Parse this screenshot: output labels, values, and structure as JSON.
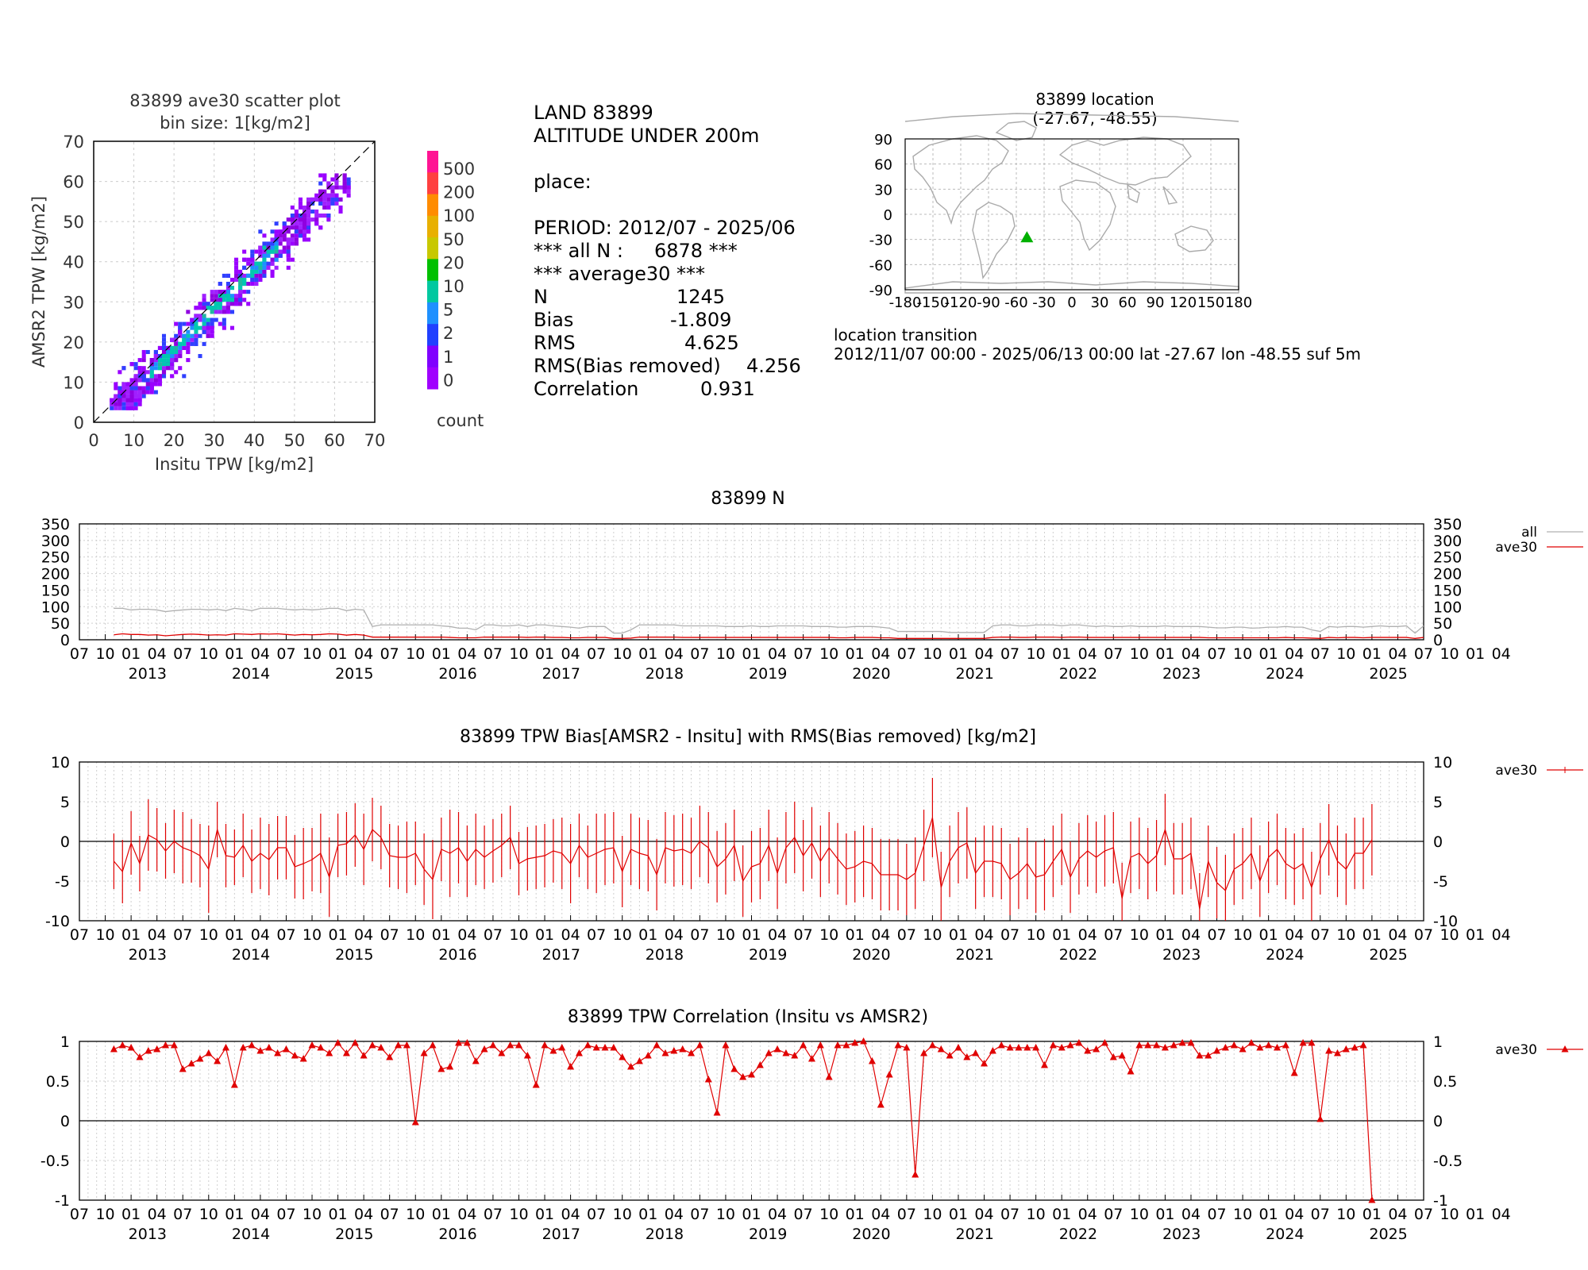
{
  "station": "83899",
  "scatter": {
    "title_line1": "83899 ave30 scatter plot",
    "title_line2": "bin size: 1[kg/m2]",
    "xlabel": "Insitu TPW [kg/m2]",
    "ylabel": "AMSR2 TPW [kg/m2]",
    "ticks": [
      "0",
      "10",
      "20",
      "30",
      "40",
      "50",
      "60",
      "70"
    ],
    "colorbar_labels": [
      "500",
      "200",
      "100",
      "50",
      "20",
      "10",
      "5",
      "2",
      "1",
      "0"
    ],
    "colorbar_colors": [
      "#ff1493",
      "#ff4040",
      "#ff8c00",
      "#e8b000",
      "#c8c800",
      "#00c000",
      "#00c8a0",
      "#1e90ff",
      "#2040ff",
      "#8000ff",
      "#a000ff"
    ],
    "colorbar_title": "count"
  },
  "stats": {
    "line1": "LAND 83899",
    "line2": "ALTITUDE UNDER 200m",
    "line3": "place:",
    "period": "PERIOD: 2012/07 - 2025/06",
    "all_n_label": "*** all N :",
    "all_n_value": "6878 ***",
    "avg_header": "*** average30 ***",
    "rows": [
      {
        "label": "N",
        "value": "1245"
      },
      {
        "label": "Bias",
        "value": "-1.809"
      },
      {
        "label": "RMS",
        "value": "4.625"
      },
      {
        "label": "RMS(Bias removed)",
        "value": "4.256"
      },
      {
        "label": "Correlation",
        "value": "0.931"
      }
    ]
  },
  "location": {
    "title_line1": "83899 location",
    "title_line2": "(-27.67, -48.55)",
    "lat": -27.67,
    "lon": -48.55,
    "yticks": [
      "90",
      "60",
      "30",
      "0",
      "-30",
      "-60",
      "-90"
    ],
    "xticks": [
      "-180",
      "-150",
      "-120",
      "-90",
      "-60",
      "-30",
      "0",
      "30",
      "60",
      "90",
      "120",
      "150",
      "180"
    ],
    "marker_color": "#00b000",
    "transition_title": "location transition",
    "transition_text": "2012/11/07 00:00 - 2025/06/13 00:00 lat -27.67 lon -48.55 suf 5m"
  },
  "time_axis": {
    "month_labels": [
      "07",
      "10",
      "01",
      "04",
      "07",
      "10",
      "01",
      "04",
      "07",
      "10",
      "01",
      "04",
      "07",
      "10",
      "01",
      "04",
      "07",
      "10",
      "01",
      "04",
      "07",
      "10",
      "01",
      "04",
      "07",
      "10",
      "01",
      "04",
      "07",
      "10",
      "01",
      "04",
      "07",
      "10",
      "01",
      "04",
      "07",
      "10",
      "01",
      "04",
      "07",
      "10",
      "01",
      "04",
      "07",
      "10",
      "01",
      "04",
      "07",
      "10",
      "01",
      "04",
      "07",
      "10",
      "01",
      "04"
    ],
    "year_labels": [
      "2013",
      "2014",
      "2015",
      "2016",
      "2017",
      "2018",
      "2019",
      "2020",
      "2021",
      "2022",
      "2023",
      "2024",
      "2025"
    ]
  },
  "chart_data": [
    {
      "type": "line",
      "title": "83899 N",
      "yticks": [
        "350",
        "300",
        "250",
        "200",
        "150",
        "100",
        "50",
        "0"
      ],
      "ylim": [
        0,
        350
      ],
      "legend": [
        {
          "name": "all",
          "color": "#b0b0b0"
        },
        {
          "name": "ave30",
          "color": "#e00000"
        }
      ],
      "series": [
        {
          "name": "all",
          "x_start": "2012-11",
          "values": [
            95,
            95,
            90,
            92,
            92,
            90,
            85,
            88,
            90,
            92,
            92,
            90,
            92,
            88,
            95,
            92,
            88,
            95,
            95,
            95,
            92,
            90,
            92,
            90,
            92,
            95,
            95,
            88,
            92,
            90,
            40,
            45,
            45,
            45,
            45,
            45,
            45,
            45,
            42,
            40,
            35,
            35,
            30,
            45,
            45,
            42,
            42,
            45,
            40,
            45,
            45,
            42,
            40,
            38,
            35,
            40,
            40,
            40,
            20,
            20,
            30,
            45,
            45,
            45,
            45,
            45,
            42,
            42,
            42,
            42,
            42,
            40,
            40,
            40,
            42,
            40,
            40,
            42,
            42,
            42,
            42,
            40,
            40,
            40,
            38,
            38,
            40,
            40,
            40,
            38,
            35,
            25,
            25,
            25,
            25,
            25,
            25,
            22,
            22,
            22,
            22,
            22,
            42,
            45,
            45,
            42,
            42,
            45,
            45,
            45,
            42,
            45,
            45,
            42,
            40,
            42,
            40,
            40,
            42,
            40,
            40,
            40,
            42,
            40,
            40,
            40,
            40,
            38,
            36,
            36,
            38,
            38,
            35,
            36,
            38,
            38,
            40,
            38,
            38,
            30,
            25,
            40,
            38,
            40,
            40,
            38,
            40,
            42,
            40,
            40,
            42,
            20,
            42
          ]
        },
        {
          "name": "ave30",
          "x_start": "2012-11",
          "values": [
            15,
            18,
            16,
            16,
            14,
            15,
            12,
            14,
            16,
            17,
            16,
            14,
            15,
            14,
            18,
            17,
            16,
            18,
            17,
            18,
            16,
            14,
            16,
            15,
            16,
            18,
            17,
            14,
            16,
            14,
            8,
            8,
            8,
            8,
            8,
            8,
            8,
            8,
            8,
            7,
            6,
            6,
            6,
            8,
            8,
            8,
            8,
            8,
            7,
            8,
            8,
            7,
            7,
            6,
            6,
            7,
            7,
            7,
            4,
            4,
            5,
            8,
            8,
            8,
            8,
            8,
            7,
            7,
            7,
            7,
            7,
            7,
            7,
            7,
            7,
            7,
            7,
            7,
            7,
            7,
            7,
            7,
            7,
            7,
            6,
            6,
            7,
            7,
            7,
            6,
            6,
            4,
            4,
            4,
            4,
            4,
            4,
            4,
            4,
            4,
            4,
            4,
            7,
            8,
            8,
            7,
            7,
            8,
            8,
            8,
            7,
            8,
            8,
            7,
            7,
            7,
            7,
            7,
            7,
            7,
            7,
            7,
            7,
            7,
            7,
            7,
            7,
            6,
            6,
            6,
            6,
            6,
            6,
            6,
            6,
            6,
            7,
            6,
            6,
            5,
            4,
            7,
            6,
            7,
            7,
            6,
            7,
            7,
            7,
            7,
            7,
            4,
            7
          ]
        }
      ]
    },
    {
      "type": "line",
      "title": "83899 TPW Bias[AMSR2 - Insitu] with RMS(Bias removed) [kg/m2]",
      "yticks": [
        "10",
        "5",
        "0",
        "-5",
        "-10"
      ],
      "ylim": [
        -10,
        10
      ],
      "legend": [
        {
          "name": "ave30",
          "color": "#e00000"
        }
      ],
      "series": [
        {
          "name": "ave30",
          "x_start": "2012-11",
          "bias": [
            -2.5,
            -3.8,
            -0.2,
            -2.8,
            0.8,
            0.2,
            -1.2,
            0,
            -0.8,
            -1.2,
            -1.8,
            -3.5,
            1.5,
            -1.8,
            -2.0,
            -0.5,
            -2.5,
            -1.5,
            -2.3,
            -0.8,
            -0.8,
            -3.2,
            -2.8,
            -2.3,
            -1.5,
            -4.5,
            -0.5,
            -0.3,
            0.8,
            -1.0,
            1.5,
            0.5,
            -1.8,
            -2.0,
            -2.0,
            -1.5,
            -3.5,
            -4.8,
            -1.0,
            -1.5,
            -0.8,
            -2.5,
            -1.0,
            -2.0,
            -1.2,
            -0.5,
            0.5,
            -2.8,
            -2.2,
            -2.0,
            -1.8,
            -1.2,
            -1.5,
            -2.8,
            -0.5,
            -2.0,
            -1.5,
            -1.0,
            -0.8,
            -3.8,
            -1.0,
            -1.5,
            -1.8,
            -4.2,
            -0.8,
            -1.2,
            -1.0,
            -1.5,
            0,
            -0.8,
            -3.2,
            -2.2,
            -0.5,
            -5.0,
            -3.2,
            -2.8,
            -0.5,
            -4.0,
            -0.8,
            0.5,
            -1.8,
            -0.2,
            -2.5,
            -0.8,
            -2.2,
            -3.5,
            -3.2,
            -2.5,
            -2.8,
            -4.2,
            -4.2,
            -4.2,
            -4.8,
            -4.0,
            -0.5,
            3.0,
            -5.8,
            -2.5,
            -0.8,
            -0.2,
            -4.0,
            -2.5,
            -2.5,
            -2.8,
            -4.8,
            -4.0,
            -2.8,
            -4.5,
            -4.2,
            -2.5,
            -1.0,
            -4.5,
            -2.2,
            -1.2,
            -2.0,
            -1.2,
            -0.8,
            -7.2,
            -2.0,
            -1.5,
            -2.8,
            -1.8,
            1.5,
            -2.2,
            -2.2,
            -1.5,
            -8.5,
            -2.5,
            -5.2,
            -6.2,
            -3.5,
            -2.8,
            -1.5,
            -5.0,
            -2.0,
            -1.0,
            -2.8,
            -3.5,
            -2.8,
            -5.8,
            -2.2,
            0.2,
            -2.5,
            -3.5,
            -1.5,
            -1.5,
            0.2
          ],
          "rms": [
            3.5,
            4,
            4,
            3.5,
            4.5,
            4,
            3.5,
            4,
            4.5,
            4,
            4,
            5.5,
            3.5,
            4,
            3.5,
            4,
            4,
            4.5,
            4.5,
            4,
            4,
            4,
            4.5,
            4,
            5,
            5,
            4,
            4,
            4,
            4.5,
            4,
            4,
            4,
            4,
            4.5,
            4,
            4.5,
            5,
            4,
            5.5,
            4.5,
            4.5,
            4.5,
            4,
            4,
            4,
            4,
            4,
            4,
            4,
            4,
            4,
            4.5,
            5,
            4,
            4,
            5,
            4.5,
            4.5,
            4.5,
            4.5,
            4.5,
            4.5,
            4.5,
            4.5,
            4.5,
            4.5,
            4.5,
            4.5,
            4.5,
            4.5,
            4.5,
            4.5,
            4.5,
            4.5,
            4.5,
            4.5,
            4.5,
            4.5,
            4.5,
            4.5,
            4.5,
            4.5,
            4.5,
            4.5,
            4.5,
            4.5,
            4.5,
            4.5,
            4.5,
            4.5,
            4.5,
            4.5,
            4.5,
            4.5,
            5,
            4.5,
            4.5,
            4.5,
            4.5,
            4.5,
            4.5,
            4.5,
            4.5,
            4.5,
            4.5,
            4.5,
            4.5,
            4.5,
            4.5,
            4.5,
            4.5,
            4.5,
            4.5,
            4.5,
            4.5,
            4.5,
            4.5,
            4.5,
            4.5,
            4.5,
            4.5,
            4.5,
            4.5,
            4.5,
            4.5,
            4.5,
            4.5,
            4.5,
            4.5,
            4.5,
            4.5,
            4.5,
            4.5,
            4.5,
            4.5,
            4.5,
            4.5,
            4.5,
            4.5,
            4.5,
            4.5,
            4.5,
            4.5,
            4.5,
            4.5,
            4.5,
            4.5,
            4.5
          ]
        }
      ]
    },
    {
      "type": "line",
      "title": "83899 TPW Correlation (Insitu vs AMSR2)",
      "yticks": [
        "1",
        "0.5",
        "0",
        "-0.5",
        "-1"
      ],
      "ylim": [
        -1,
        1
      ],
      "legend": [
        {
          "name": "ave30",
          "color": "#e00000"
        }
      ],
      "series": [
        {
          "name": "ave30",
          "x_start": "2012-11",
          "values": [
            0.9,
            0.95,
            0.92,
            0.8,
            0.88,
            0.9,
            0.95,
            0.95,
            0.65,
            0.72,
            0.78,
            0.85,
            0.75,
            0.92,
            0.45,
            0.92,
            0.95,
            0.88,
            0.92,
            0.85,
            0.9,
            0.82,
            0.78,
            0.95,
            0.92,
            0.85,
            0.98,
            0.85,
            0.98,
            0.82,
            0.95,
            0.92,
            0.8,
            0.95,
            0.95,
            -0.02,
            0.85,
            0.95,
            0.65,
            0.68,
            0.98,
            0.98,
            0.75,
            0.9,
            0.95,
            0.85,
            0.95,
            0.95,
            0.82,
            0.45,
            0.95,
            0.88,
            0.92,
            0.68,
            0.85,
            0.95,
            0.92,
            0.92,
            0.92,
            0.8,
            0.68,
            0.75,
            0.82,
            0.95,
            0.85,
            0.88,
            0.9,
            0.85,
            0.95,
            0.52,
            0.1,
            0.95,
            0.65,
            0.55,
            0.58,
            0.7,
            0.85,
            0.9,
            0.85,
            0.82,
            0.95,
            0.78,
            0.95,
            0.55,
            0.95,
            0.95,
            0.98,
            1.0,
            0.75,
            0.2,
            0.58,
            0.95,
            0.92,
            -0.68,
            0.85,
            0.95,
            0.9,
            0.82,
            0.92,
            0.8,
            0.85,
            0.72,
            0.88,
            0.95,
            0.92,
            0.92,
            0.92,
            0.92,
            0.7,
            0.95,
            0.92,
            0.95,
            0.98,
            0.88,
            0.9,
            0.98,
            0.8,
            0.82,
            0.62,
            0.95,
            0.95,
            0.95,
            0.92,
            0.95,
            0.98,
            0.98,
            0.82,
            0.82,
            0.88,
            0.92,
            0.95,
            0.9,
            0.98,
            0.92,
            0.95,
            0.92,
            0.95,
            0.6,
            0.98,
            0.98,
            0.02,
            0.88,
            0.85,
            0.9,
            0.92,
            0.95,
            -1.0
          ]
        }
      ]
    }
  ]
}
